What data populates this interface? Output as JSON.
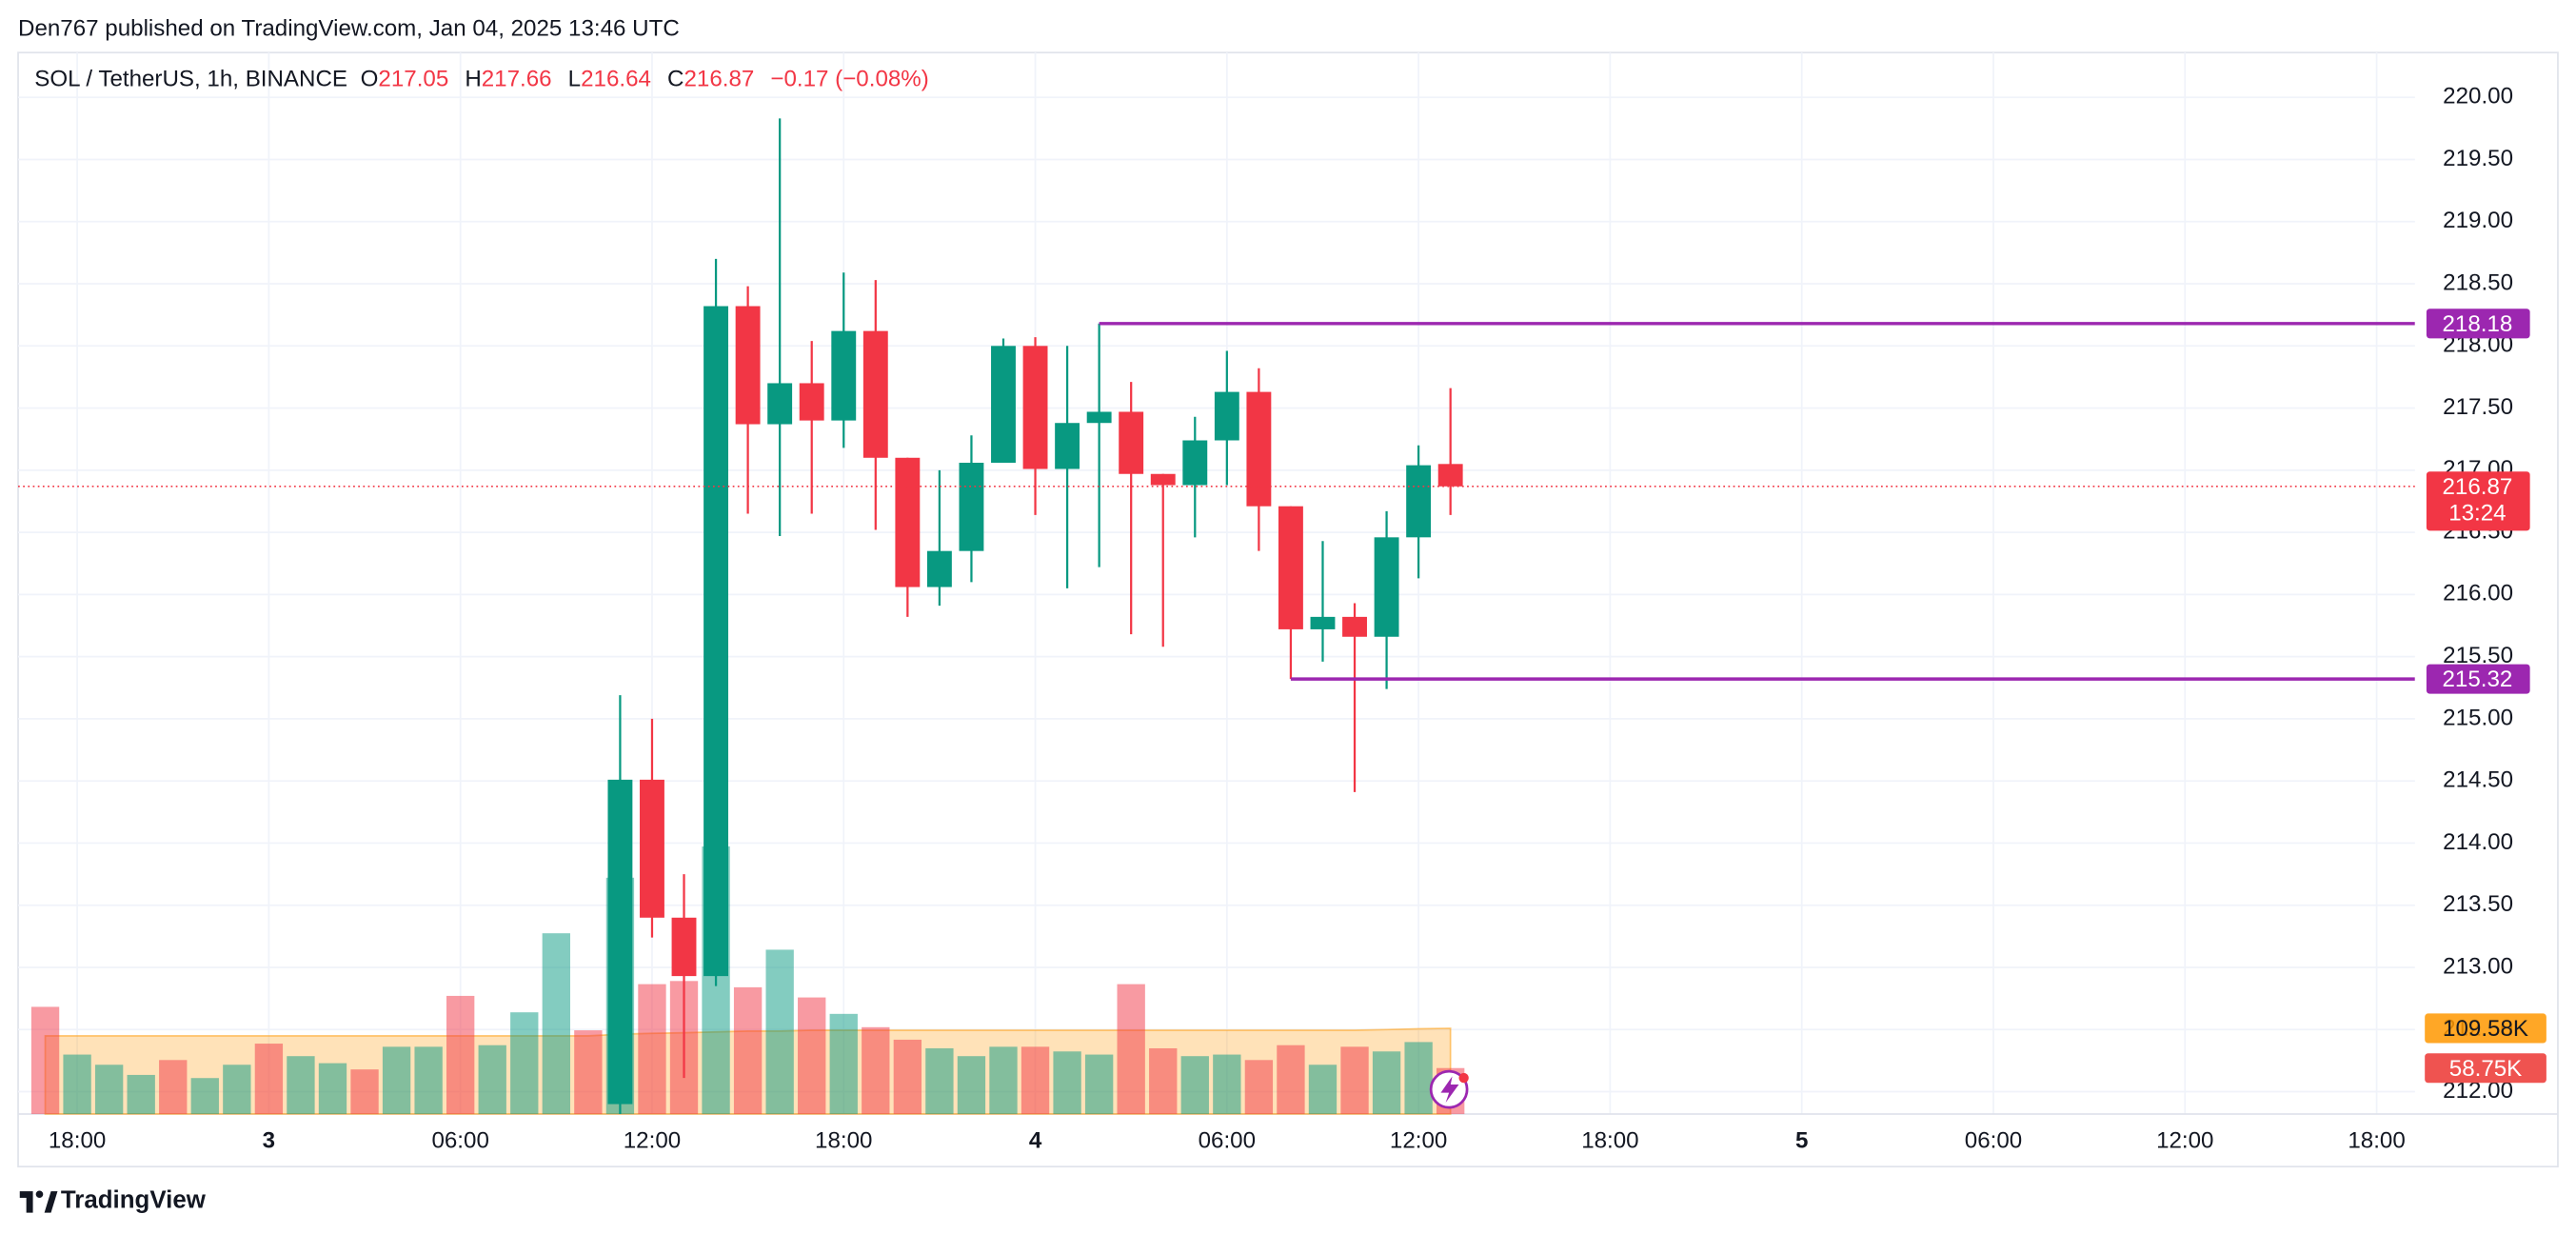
{
  "published": "Den767 published on TradingView.com, Jan 04, 2025 13:46 UTC",
  "footer": "TradingView",
  "chart_data": {
    "type": "candlestick",
    "symbol": "SOL / TetherUS, 1h, BINANCE",
    "ohlc_header": [
      {
        "label": "O",
        "value": 217.05
      },
      {
        "label": "H",
        "value": 217.66
      },
      {
        "label": "L",
        "value": 216.64
      },
      {
        "label": "C",
        "value": 216.87
      }
    ],
    "change": "−0.17 (−0.08%)",
    "up_color": "#089981",
    "down_color": "#f23645",
    "categories": [
      null,
      "18:00",
      null,
      null,
      null,
      null,
      null,
      "3",
      null,
      null,
      null,
      null,
      null,
      "06:00",
      null,
      null,
      null,
      null,
      null,
      "12:00",
      null,
      null,
      null,
      null,
      null,
      "18:00",
      null,
      null,
      null,
      null,
      null,
      "4",
      null,
      null,
      null,
      null,
      null,
      "06:00",
      null,
      null,
      null,
      null,
      null,
      "12:00",
      null,
      null,
      null,
      null,
      null,
      "18:00",
      null,
      null,
      null,
      null,
      null,
      "5",
      null,
      null,
      null,
      null,
      null,
      "06:00",
      null,
      null,
      null,
      null,
      null,
      "12:00",
      null,
      null,
      null,
      null,
      null,
      "18:00",
      null
    ],
    "open": [
      null,
      null,
      null,
      null,
      null,
      null,
      null,
      null,
      null,
      null,
      null,
      null,
      null,
      null,
      null,
      null,
      null,
      null,
      211.9,
      214.51,
      213.4,
      212.93,
      218.32,
      217.37,
      217.7,
      217.4,
      218.12,
      217.1,
      216.06,
      216.35,
      217.06,
      218.0,
      217.01,
      217.38,
      217.47,
      216.97,
      216.88,
      217.24,
      217.63,
      216.71,
      215.72,
      215.82,
      215.66,
      216.46,
      217.05,
      null,
      null,
      null,
      null,
      null,
      null,
      null,
      null,
      null,
      null,
      null,
      null,
      null,
      null,
      null,
      null,
      null,
      null,
      null,
      null,
      null,
      null,
      null,
      null,
      null,
      null,
      null,
      null,
      null,
      null
    ],
    "high": [
      null,
      null,
      null,
      null,
      null,
      null,
      null,
      null,
      null,
      null,
      null,
      null,
      null,
      null,
      null,
      null,
      null,
      null,
      215.19,
      215.0,
      213.75,
      218.7,
      218.48,
      219.83,
      218.04,
      218.59,
      218.53,
      217.1,
      217.0,
      217.28,
      218.06,
      218.07,
      218.0,
      218.18,
      217.71,
      216.97,
      217.43,
      217.96,
      217.82,
      216.71,
      216.43,
      215.93,
      216.67,
      217.2,
      217.66,
      null,
      null,
      null,
      null,
      null,
      null,
      null,
      null,
      null,
      null,
      null,
      null,
      null,
      null,
      null,
      null,
      null,
      null,
      null,
      null,
      null,
      null,
      null,
      null,
      null,
      null,
      null,
      null,
      null,
      null
    ],
    "low": [
      null,
      null,
      null,
      null,
      null,
      null,
      null,
      null,
      null,
      null,
      null,
      null,
      null,
      null,
      null,
      null,
      null,
      null,
      211.8,
      213.24,
      212.11,
      212.85,
      216.65,
      216.47,
      216.65,
      217.18,
      216.52,
      215.82,
      215.91,
      216.1,
      217.06,
      216.64,
      216.05,
      216.22,
      215.68,
      215.58,
      216.46,
      216.88,
      216.35,
      215.32,
      215.46,
      214.41,
      215.24,
      216.13,
      216.64,
      null,
      null,
      null,
      null,
      null,
      null,
      null,
      null,
      null,
      null,
      null,
      null,
      null,
      null,
      null,
      null,
      null,
      null,
      null,
      null,
      null,
      null,
      null,
      null,
      null,
      null,
      null,
      null,
      null,
      null
    ],
    "close": [
      null,
      null,
      null,
      null,
      null,
      null,
      null,
      null,
      null,
      null,
      null,
      null,
      null,
      null,
      null,
      null,
      null,
      null,
      214.51,
      213.4,
      212.93,
      218.32,
      217.37,
      217.7,
      217.4,
      218.12,
      217.1,
      216.06,
      216.35,
      217.06,
      218.0,
      217.01,
      217.38,
      217.47,
      216.97,
      216.88,
      217.24,
      217.63,
      216.71,
      215.72,
      215.82,
      215.66,
      216.46,
      217.04,
      216.87,
      null,
      null,
      null,
      null,
      null,
      null,
      null,
      null,
      null,
      null,
      null,
      null,
      null,
      null,
      null,
      null,
      null,
      null,
      null,
      null,
      null,
      null,
      null,
      null,
      null,
      null,
      null,
      null,
      null,
      null
    ],
    "ylim": [
      211.82,
      220.36
    ],
    "yticks": [
      {
        "value": 212,
        "label": "212.00"
      },
      {
        "value": 212.5,
        "label": "212.50"
      },
      {
        "value": 213,
        "label": "213.00"
      },
      {
        "value": 213.5,
        "label": "213.50"
      },
      {
        "value": 214,
        "label": "214.00"
      },
      {
        "value": 214.5,
        "label": "214.50"
      },
      {
        "value": 215,
        "label": "215.00"
      },
      {
        "value": 215.5,
        "label": "215.50"
      },
      {
        "value": 216,
        "label": "216.00"
      },
      {
        "value": 216.5,
        "label": "216.50"
      },
      {
        "value": 217,
        "label": "217.00"
      },
      {
        "value": 217.5,
        "label": "217.50"
      },
      {
        "value": 218,
        "label": "218.00"
      },
      {
        "value": 218.5,
        "label": "218.50"
      },
      {
        "value": 219,
        "label": "219.00"
      },
      {
        "value": 219.5,
        "label": "219.50"
      },
      {
        "value": 220,
        "label": "220.00"
      }
    ],
    "grid": true,
    "last_price": 216.87,
    "countdown": "13:24",
    "levels": [
      {
        "value": 218.18,
        "color": "#9c27b0"
      },
      {
        "value": 215.32,
        "color": "#9c27b0"
      }
    ],
    "vlim": [
      0,
      400
    ],
    "volume": {
      "values": [
        137,
        76,
        63,
        50,
        69,
        46,
        63,
        90,
        74,
        65,
        57,
        86,
        86,
        151,
        88,
        130,
        231,
        107,
        302,
        166,
        170,
        342,
        162,
        210,
        149,
        128,
        111,
        95,
        84,
        74,
        86,
        86,
        80,
        76,
        166,
        84,
        74,
        76,
        69,
        88,
        63,
        86,
        80,
        92,
        58.75,
        null,
        null,
        null,
        null,
        null,
        null,
        null,
        null,
        null,
        null,
        null,
        null,
        null,
        null,
        null,
        null,
        null,
        null,
        null,
        null,
        null,
        null,
        null,
        null,
        null,
        null,
        null,
        null,
        null,
        null
      ],
      "colors": [
        "#f2364580",
        "#08998180",
        "#08998180",
        "#08998180",
        "#f2364580",
        "#08998180",
        "#08998180",
        "#f2364580",
        "#08998180",
        "#08998180",
        "#f2364580",
        "#08998180",
        "#08998180",
        "#f2364580",
        "#08998180",
        "#08998180",
        "#08998180",
        "#f2364580",
        "#08998180",
        "#f2364580",
        "#f2364580",
        "#08998180",
        "#f2364580",
        "#08998180",
        "#f2364580",
        "#08998180",
        "#f2364580",
        "#f2364580",
        "#08998180",
        "#08998180",
        "#08998180",
        "#f2364580",
        "#08998180",
        "#08998180",
        "#f2364580",
        "#f2364580",
        "#08998180",
        "#08998180",
        "#f2364580",
        "#f2364580",
        "#08998180",
        "#f2364580",
        "#08998180",
        "#08998180",
        "#f2364580",
        null,
        null,
        null,
        null,
        null,
        null,
        null,
        null,
        null,
        null,
        null,
        null,
        null,
        null,
        null,
        null,
        null,
        null,
        null,
        null,
        null,
        null,
        null,
        null,
        null,
        null,
        null,
        null,
        null,
        null
      ],
      "last_label": "58.75K",
      "label_color": "#ef5350"
    },
    "volume_ma": {
      "values": [
        100,
        100,
        100,
        100,
        100,
        100,
        100,
        100,
        100,
        100,
        100,
        100,
        100,
        100,
        100,
        100,
        100,
        100,
        102,
        103,
        104,
        105,
        106,
        106,
        107,
        107,
        107,
        107,
        107,
        107,
        107,
        107,
        107,
        107,
        107,
        107,
        107,
        107,
        107,
        107,
        107,
        107,
        108,
        109,
        109.58,
        null,
        null,
        null,
        null,
        null,
        null,
        null,
        null,
        null,
        null,
        null,
        null,
        null,
        null,
        null,
        null,
        null,
        null,
        null,
        null,
        null,
        null,
        null,
        null,
        null,
        null,
        null,
        null,
        null,
        null
      ],
      "color": "#ff9800",
      "last_label": "109.58K"
    }
  }
}
